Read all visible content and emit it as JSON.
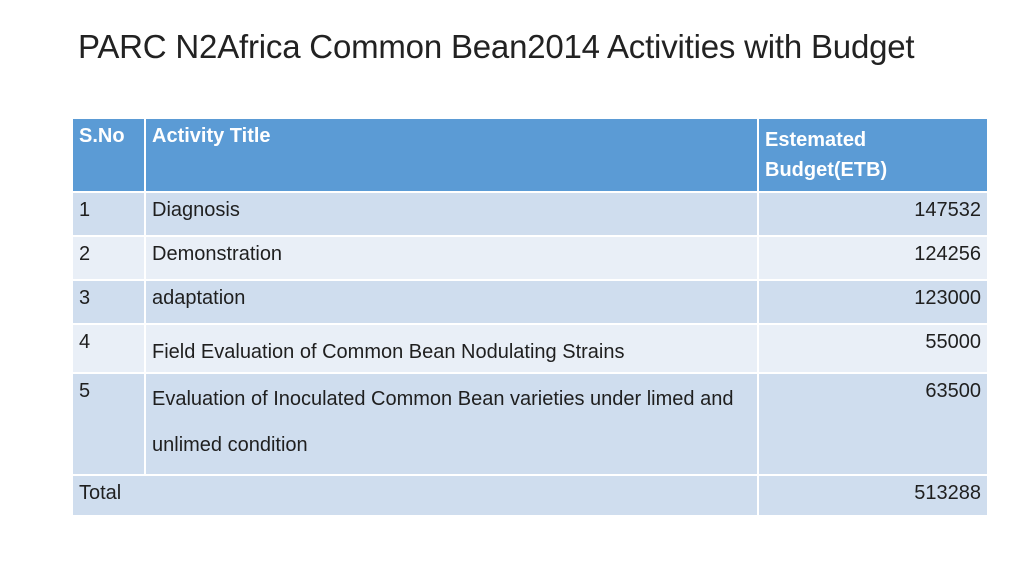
{
  "title": "PARC N2Africa Common Bean2014 Activities with Budget",
  "table": {
    "headers": {
      "sno": "S.No",
      "activity": "Activity Title",
      "budget": "Estemated Budget(ETB)"
    },
    "rows": [
      {
        "sno": "1",
        "activity": "Diagnosis",
        "budget": "147532"
      },
      {
        "sno": "2",
        "activity": "Demonstration",
        "budget": "124256"
      },
      {
        "sno": "3",
        "activity": "adaptation",
        "budget": "123000"
      },
      {
        "sno": "4",
        "activity": "Field Evaluation of Common Bean  Nodulating Strains",
        "budget": "55000"
      },
      {
        "sno": "5",
        "activity": "Evaluation of Inoculated Common Bean  varieties under limed and unlimed  condition",
        "budget": "63500"
      }
    ],
    "total": {
      "label": "Total",
      "value": "513288"
    }
  }
}
